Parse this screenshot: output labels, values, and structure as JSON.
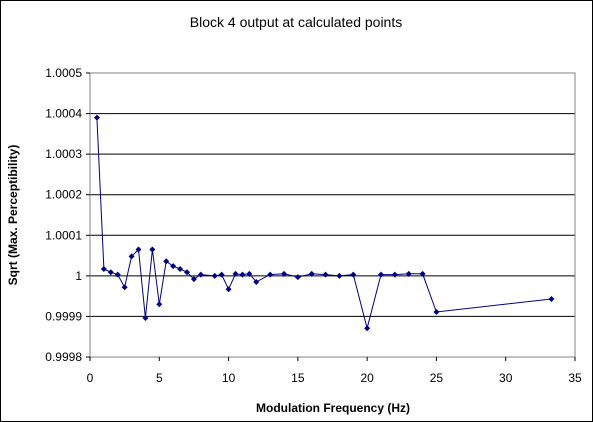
{
  "chart_data": {
    "type": "scatter",
    "title": "Block 4 output at calculated points",
    "xlabel": "Modulation Frequency (Hz)",
    "ylabel": "Sqrt (Max. Perceptibility)",
    "xlim": [
      0,
      35
    ],
    "ylim": [
      0.9998,
      1.0005
    ],
    "x_ticks": [
      "0",
      "5",
      "10",
      "15",
      "20",
      "25",
      "30",
      "35"
    ],
    "x_tick_values": [
      0,
      5,
      10,
      15,
      20,
      25,
      30,
      35
    ],
    "y_ticks": [
      "0.9998",
      "0.9999",
      "1",
      "1.0001",
      "1.0002",
      "1.0003",
      "1.0004",
      "1.0005"
    ],
    "y_tick_values": [
      0.9998,
      0.9999,
      1.0,
      1.0001,
      1.0002,
      1.0003,
      1.0004,
      1.0005
    ],
    "grid": {
      "horizontal": true,
      "vertical": false
    },
    "legend": "none",
    "series_color": "#000080",
    "points": [
      {
        "x": 0.5,
        "y": 1.00039
      },
      {
        "x": 1.0,
        "y": 1.000017
      },
      {
        "x": 1.5,
        "y": 1.000009
      },
      {
        "x": 2.0,
        "y": 1.000003
      },
      {
        "x": 2.5,
        "y": 0.999972
      },
      {
        "x": 3.0,
        "y": 1.000048
      },
      {
        "x": 3.5,
        "y": 1.000065
      },
      {
        "x": 4.0,
        "y": 0.999896
      },
      {
        "x": 4.5,
        "y": 1.000065
      },
      {
        "x": 5.0,
        "y": 0.99993
      },
      {
        "x": 5.5,
        "y": 1.000036
      },
      {
        "x": 6.0,
        "y": 1.000024
      },
      {
        "x": 6.5,
        "y": 1.000017
      },
      {
        "x": 7.0,
        "y": 1.000009
      },
      {
        "x": 7.5,
        "y": 0.999992
      },
      {
        "x": 8.0,
        "y": 1.000003
      },
      {
        "x": 9.0,
        "y": 1.0
      },
      {
        "x": 9.5,
        "y": 1.000003
      },
      {
        "x": 10.0,
        "y": 0.999967
      },
      {
        "x": 10.5,
        "y": 1.000005
      },
      {
        "x": 11.0,
        "y": 1.000003
      },
      {
        "x": 11.5,
        "y": 1.000005
      },
      {
        "x": 12.0,
        "y": 0.999985
      },
      {
        "x": 13.0,
        "y": 1.000003
      },
      {
        "x": 14.0,
        "y": 1.000005
      },
      {
        "x": 15.0,
        "y": 0.999997
      },
      {
        "x": 16.0,
        "y": 1.000005
      },
      {
        "x": 17.0,
        "y": 1.000003
      },
      {
        "x": 18.0,
        "y": 1.0
      },
      {
        "x": 19.0,
        "y": 1.000003
      },
      {
        "x": 20.0,
        "y": 0.999871
      },
      {
        "x": 21.0,
        "y": 1.000003
      },
      {
        "x": 22.0,
        "y": 1.000003
      },
      {
        "x": 23.0,
        "y": 1.000005
      },
      {
        "x": 24.0,
        "y": 1.000005
      },
      {
        "x": 25.0,
        "y": 0.999911
      },
      {
        "x": 33.3,
        "y": 0.999943
      }
    ]
  }
}
